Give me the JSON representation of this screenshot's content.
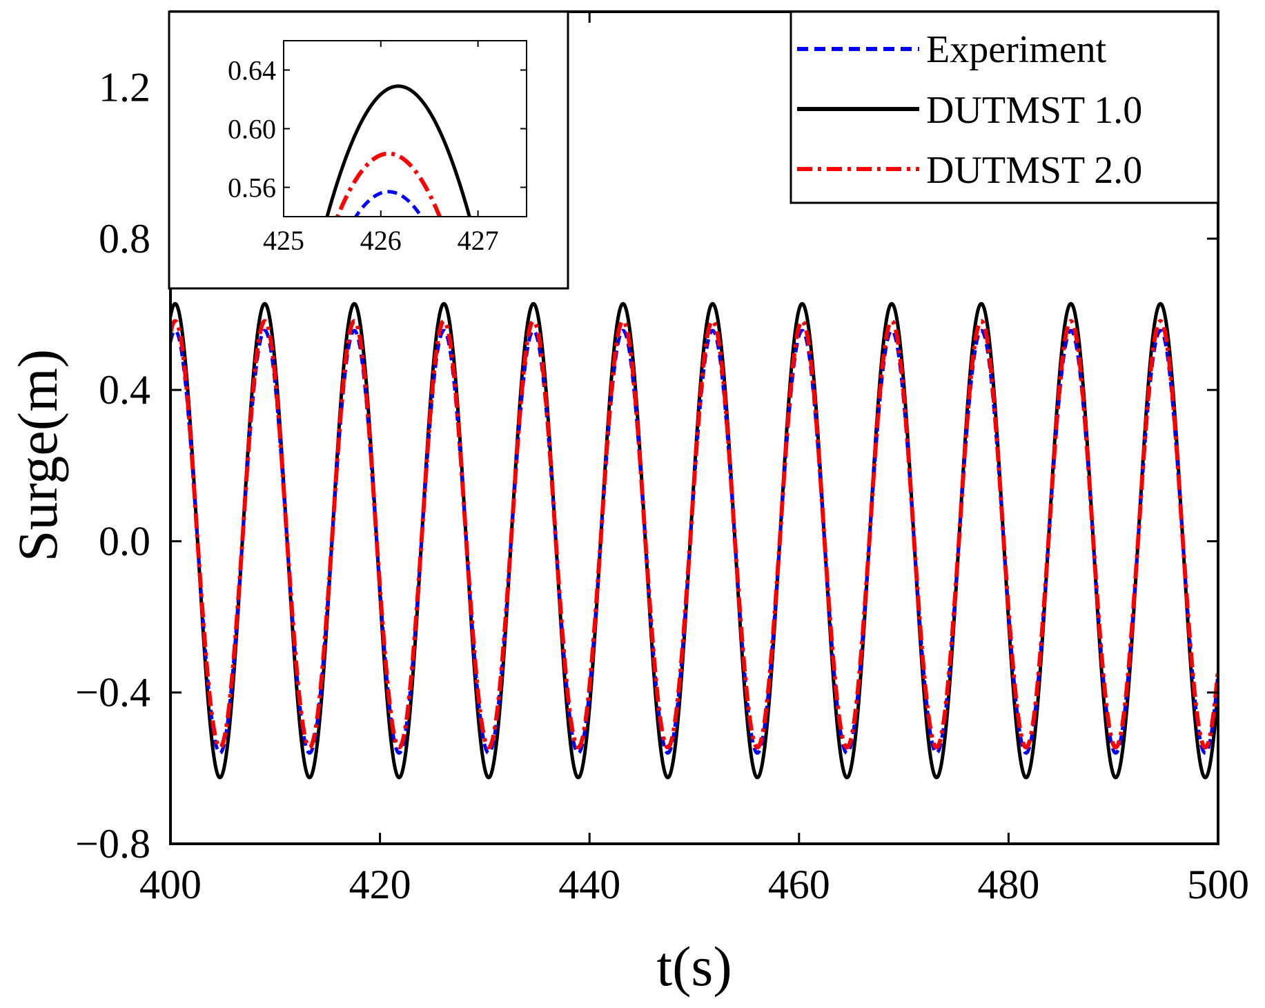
{
  "chart_data": {
    "type": "line",
    "xlabel": "t(s)",
    "ylabel": "Surge(m)",
    "xlim": [
      400,
      500
    ],
    "ylim": [
      -0.8,
      1.4
    ],
    "xticks": [
      400,
      420,
      440,
      460,
      480,
      500
    ],
    "yticks": [
      -0.8,
      -0.4,
      0.0,
      0.4,
      0.8,
      1.2
    ],
    "xtick_labels": [
      "400",
      "420",
      "440",
      "460",
      "480",
      "500"
    ],
    "ytick_labels": [
      "−0.8",
      "−0.4",
      "0.0",
      "0.4",
      "0.8",
      "1.2"
    ],
    "grid": false,
    "legend_position": "top-right",
    "period_s": 8.55,
    "peak_time_s": 426.1,
    "series": [
      {
        "name": "Experiment",
        "color": "#0000ff",
        "dash": "dashed",
        "amplitude_pos": 0.557,
        "amplitude_neg": -0.56
      },
      {
        "name": "DUTMST 1.0",
        "color": "#000000",
        "dash": "solid",
        "amplitude_pos": 0.628,
        "amplitude_neg": -0.625
      },
      {
        "name": "DUTMST 2.0",
        "color": "#ff0000",
        "dash": "dash-dot",
        "amplitude_pos": 0.582,
        "amplitude_neg": -0.545
      }
    ],
    "inset": {
      "position": "top-left",
      "xlim": [
        425,
        427.5
      ],
      "ylim": [
        0.54,
        0.66
      ],
      "xticks": [
        425,
        426,
        427
      ],
      "yticks": [
        0.56,
        0.6,
        0.64
      ],
      "xtick_labels": [
        "425",
        "426",
        "427"
      ],
      "ytick_labels": [
        "0.56",
        "0.60",
        "0.64"
      ],
      "series_peaks": [
        {
          "name": "Experiment",
          "peak_t": 426.08,
          "peak_y": 0.557
        },
        {
          "name": "DUTMST 1.0",
          "peak_t": 426.18,
          "peak_y": 0.629
        },
        {
          "name": "DUTMST 2.0",
          "peak_t": 426.08,
          "peak_y": 0.583
        }
      ]
    }
  }
}
